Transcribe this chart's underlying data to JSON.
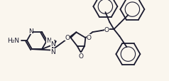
{
  "bg_color": "#faf6ee",
  "line_color": "#1a1a2e",
  "line_width": 1.3,
  "font_size": 6.5,
  "figsize": [
    2.38,
    1.15
  ],
  "dpi": 100,
  "xlim": [
    0,
    238
  ],
  "ylim": [
    0,
    115
  ]
}
